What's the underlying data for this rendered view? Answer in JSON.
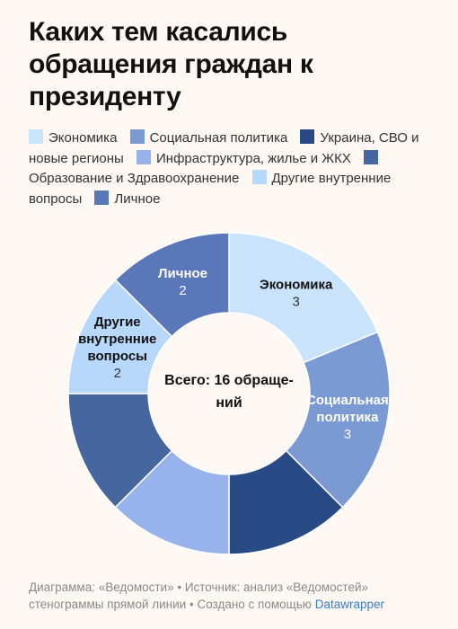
{
  "title_lines": [
    "Каких тем касались",
    "обращения граждан к",
    "президенту"
  ],
  "center_lines": [
    "Всего: 16 обраще-",
    "ний"
  ],
  "footer": {
    "line1": "Диаграмма: «Ведомости» • Источник: анализ «Ведомостей»",
    "line2": "стенограммы прямой линии • Создано с помощью",
    "link": "Datawrapper"
  },
  "chart_data": {
    "type": "pie",
    "donut": true,
    "categories": [
      "Экономика",
      "Социальная политика",
      "Украина, СВО и новые регионы",
      "Инфраструктура, жилье и ЖКХ",
      "Образование и Здравоохранение",
      "Другие внутренние вопросы",
      "Личное"
    ],
    "values": [
      3,
      3,
      2,
      2,
      2,
      2,
      2
    ],
    "colors": [
      "#c9e3fb",
      "#7b9ad3",
      "#284a85",
      "#98b3eb",
      "#45669f",
      "#b8d8fb",
      "#5a77b9"
    ],
    "slice_label_lines": [
      [
        "Экономика"
      ],
      [
        "Социальная",
        "политика"
      ],
      [],
      [],
      [],
      [
        "Другие",
        "внутренние",
        "вопросы"
      ],
      [
        "Личное"
      ]
    ],
    "slice_value_shown": [
      true,
      true,
      false,
      false,
      false,
      true,
      true
    ],
    "slice_label_color": [
      "#111111",
      "#ffffff",
      "#ffffff",
      "#ffffff",
      "#ffffff",
      "#111111",
      "#ffffff"
    ],
    "slice_value_color": [
      "#333333",
      "#ffffff",
      "#ffffff",
      "#ffffff",
      "#ffffff",
      "#333333",
      "#ffffff"
    ],
    "legend_placement": "top"
  }
}
